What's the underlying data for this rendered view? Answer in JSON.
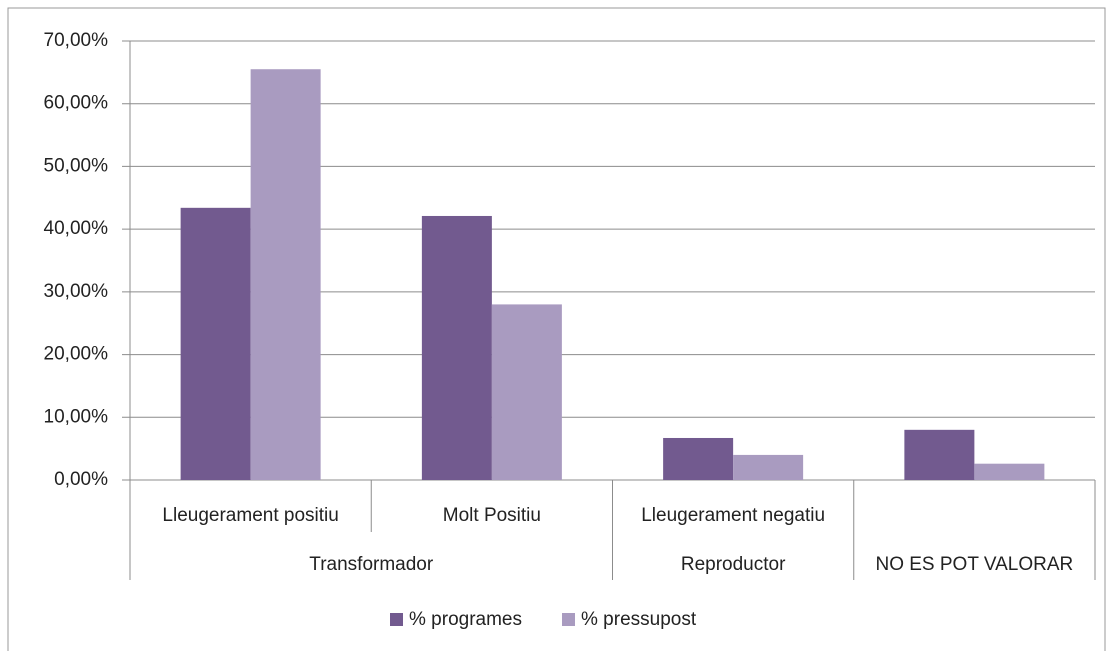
{
  "chart_data": {
    "type": "bar",
    "categories": [
      "Lleugerament positiu",
      "Molt Positiu",
      "Lleugerament negatiu",
      null
    ],
    "groups": [
      "Transformador",
      "Transformador",
      "Reproductor",
      "NO ES POT VALORAR"
    ],
    "series": [
      {
        "name": "% programes",
        "color": "#725a8f",
        "values": [
          43.4,
          42.1,
          6.7,
          8.0
        ]
      },
      {
        "name": "% pressupost",
        "color": "#a99bc0",
        "values": [
          65.5,
          28.0,
          4.0,
          2.6
        ]
      }
    ],
    "ylim": [
      0,
      70
    ],
    "yticks": [
      {
        "value": 0,
        "label": "0,00%"
      },
      {
        "value": 10,
        "label": "10,00%"
      },
      {
        "value": 20,
        "label": "20,00%"
      },
      {
        "value": 30,
        "label": "30,00%"
      },
      {
        "value": 40,
        "label": "40,00%"
      },
      {
        "value": 50,
        "label": "50,00%"
      },
      {
        "value": 60,
        "label": "60,00%"
      },
      {
        "value": 70,
        "label": "70,00%"
      }
    ],
    "grid": true,
    "legend": "bottom"
  }
}
